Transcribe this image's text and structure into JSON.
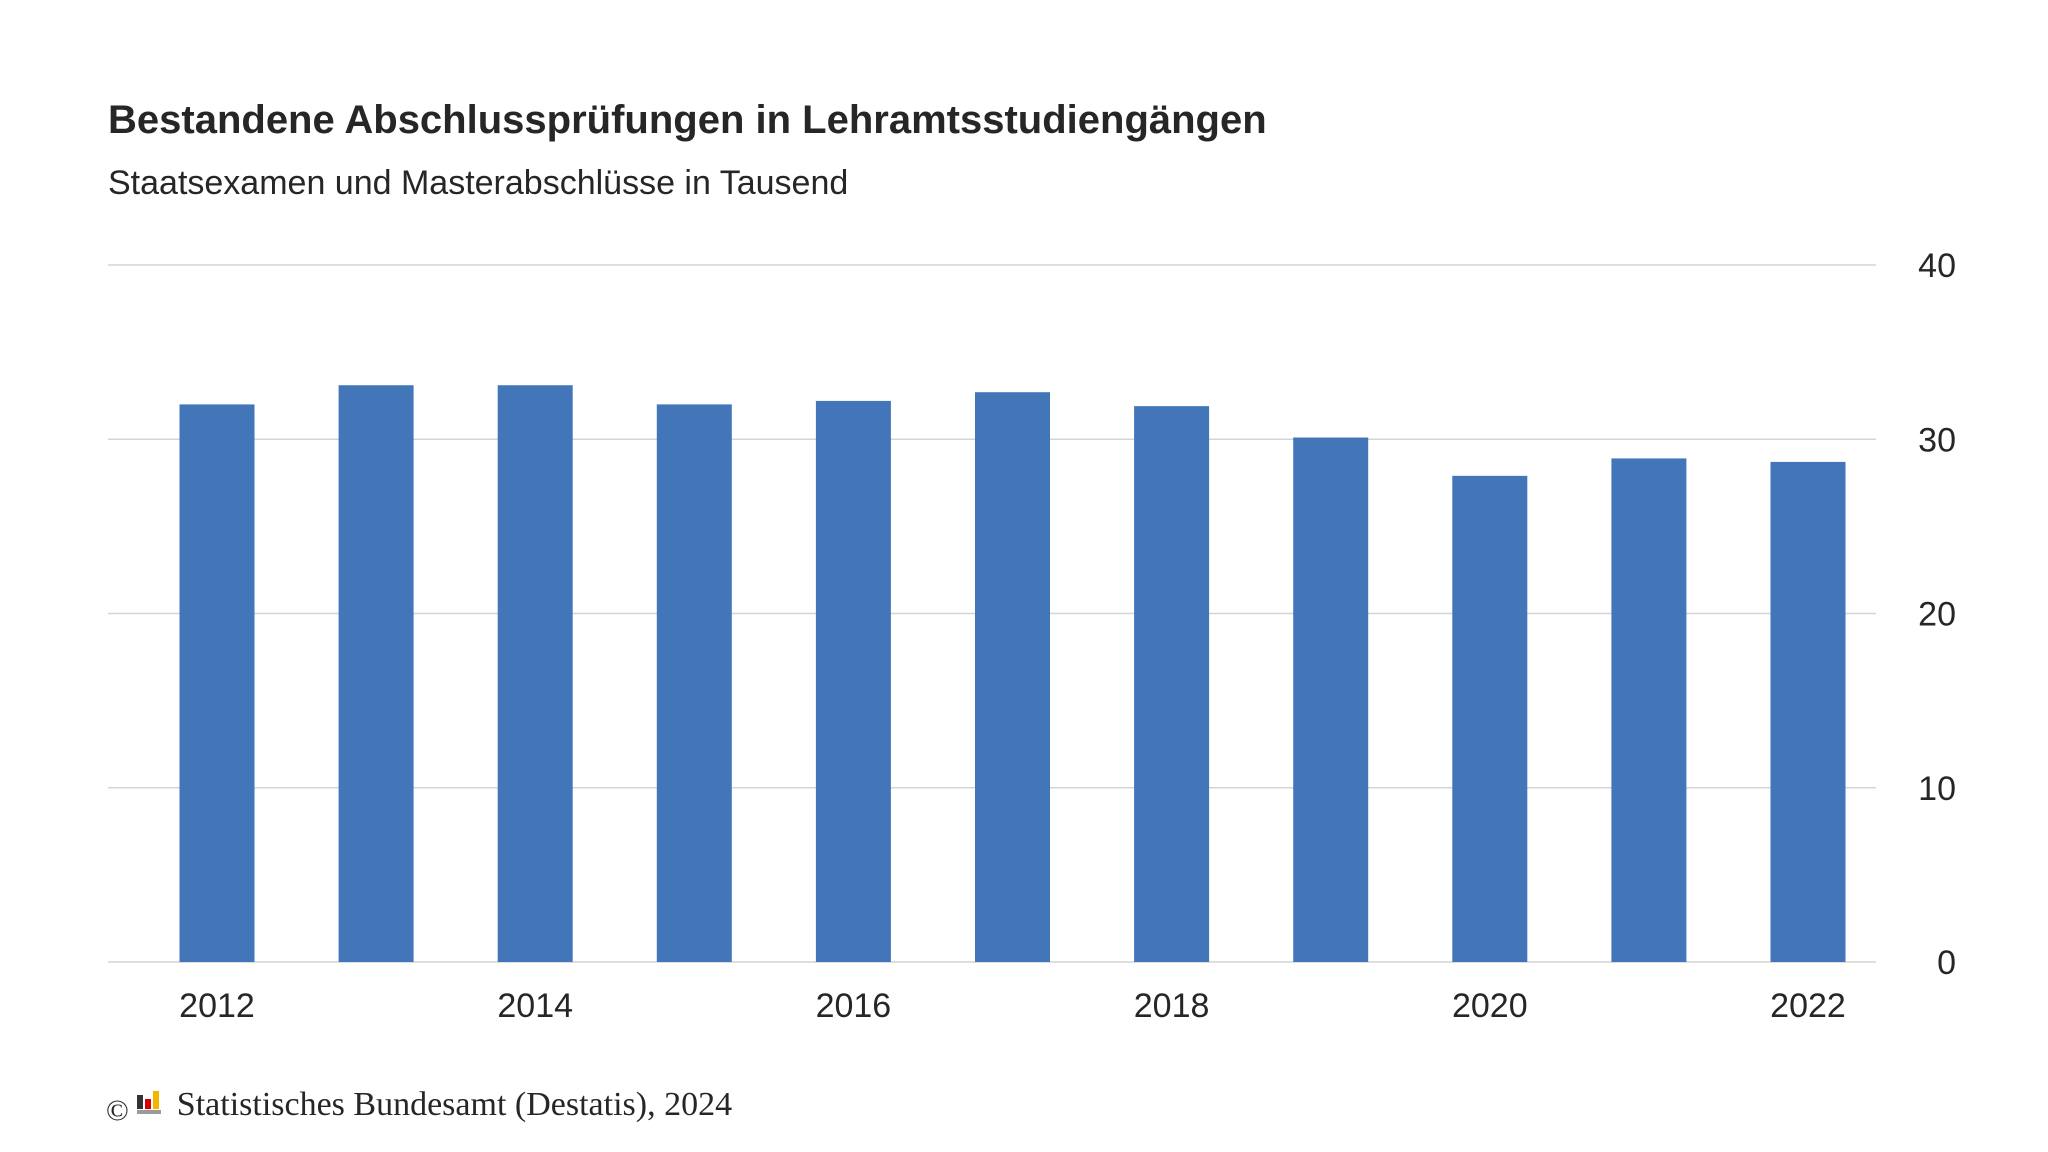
{
  "chart_data": {
    "type": "bar",
    "title": "Bestandene Abschlussprüfungen in Lehramtsstudiengängen",
    "subtitle": "Staatsexamen und Masterabschlüsse in Tausend",
    "categories": [
      "2012",
      "2013",
      "2014",
      "2015",
      "2016",
      "2017",
      "2018",
      "2019",
      "2020",
      "2021",
      "2022"
    ],
    "x_tick_labels": [
      "2012",
      "",
      "2014",
      "",
      "2016",
      "",
      "2018",
      "",
      "2020",
      "",
      "2022"
    ],
    "values": [
      32.0,
      33.1,
      33.1,
      32.0,
      32.2,
      32.7,
      31.9,
      30.1,
      27.9,
      28.9,
      28.7
    ],
    "ylim": [
      0,
      40
    ],
    "yticks": [
      0,
      10,
      20,
      30,
      40
    ],
    "y_axis_position": "right",
    "grid": true,
    "bar_color": "#4276b9",
    "grid_color": "#d4d4d4"
  },
  "footer": {
    "copyright_symbol": "©",
    "source": "Statistisches Bundesamt (Destatis), 2024",
    "logo_icon": "destatis-logo-icon"
  }
}
